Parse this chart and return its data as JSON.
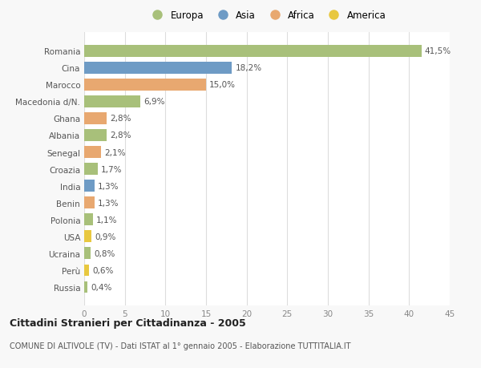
{
  "categories": [
    "Romania",
    "Cina",
    "Marocco",
    "Macedonia d/N.",
    "Ghana",
    "Albania",
    "Senegal",
    "Croazia",
    "India",
    "Benin",
    "Polonia",
    "USA",
    "Ucraina",
    "Perù",
    "Russia"
  ],
  "values": [
    41.5,
    18.2,
    15.0,
    6.9,
    2.8,
    2.8,
    2.1,
    1.7,
    1.3,
    1.3,
    1.1,
    0.9,
    0.8,
    0.6,
    0.4
  ],
  "labels": [
    "41,5%",
    "18,2%",
    "15,0%",
    "6,9%",
    "2,8%",
    "2,8%",
    "2,1%",
    "1,7%",
    "1,3%",
    "1,3%",
    "1,1%",
    "0,9%",
    "0,8%",
    "0,6%",
    "0,4%"
  ],
  "colors": [
    "#a8c07a",
    "#6e9bc5",
    "#e8a870",
    "#a8c07a",
    "#e8a870",
    "#a8c07a",
    "#e8a870",
    "#a8c07a",
    "#6e9bc5",
    "#e8a870",
    "#a8c07a",
    "#e8c840",
    "#a8c07a",
    "#e8c840",
    "#a8c07a"
  ],
  "legend_labels": [
    "Europa",
    "Asia",
    "Africa",
    "America"
  ],
  "legend_colors": [
    "#a8c07a",
    "#6e9bc5",
    "#e8a870",
    "#e8c840"
  ],
  "title": "Cittadini Stranieri per Cittadinanza - 2005",
  "subtitle": "COMUNE DI ALTIVOLE (TV) - Dati ISTAT al 1° gennaio 2005 - Elaborazione TUTTITALIA.IT",
  "xlim": [
    0,
    45
  ],
  "xticks": [
    0,
    5,
    10,
    15,
    20,
    25,
    30,
    35,
    40,
    45
  ],
  "background_color": "#f8f8f8",
  "bar_background": "#ffffff",
  "grid_color": "#dddddd",
  "label_color": "#555555",
  "tick_color": "#888888"
}
